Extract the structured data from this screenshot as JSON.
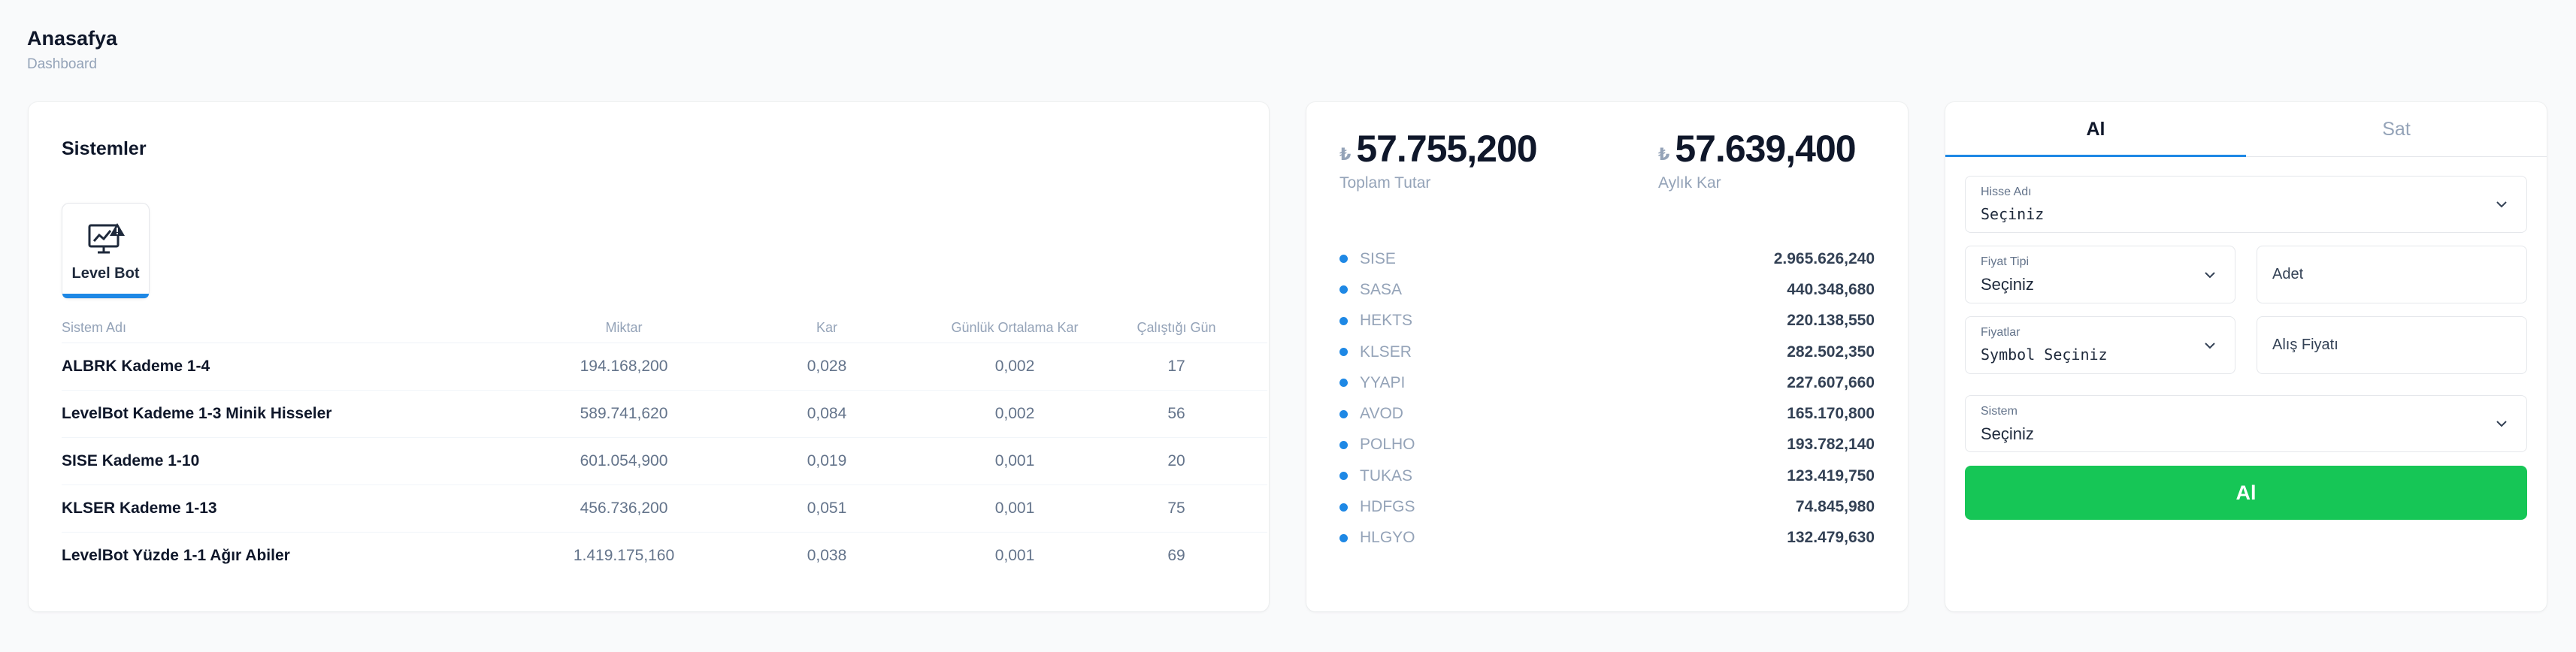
{
  "header": {
    "title": "Anasafya",
    "subtitle": "Dashboard"
  },
  "systems": {
    "title": "Sistemler",
    "bot": {
      "label": "Level Bot",
      "icon": "chart-monitor-icon"
    },
    "columns": [
      "Sistem Adı",
      "Miktar",
      "Kar",
      "Günlük Ortalama Kar",
      "Çalıştığı Gün"
    ],
    "rows": [
      {
        "name": "ALBRK Kademe 1-4",
        "miktar": "194.168,200",
        "kar": "0,028",
        "gok": "0,002",
        "gun": "17"
      },
      {
        "name": "LevelBot Kademe 1-3 Minik Hisseler",
        "miktar": "589.741,620",
        "kar": "0,084",
        "gok": "0,002",
        "gun": "56"
      },
      {
        "name": "SISE Kademe 1-10",
        "miktar": "601.054,900",
        "kar": "0,019",
        "gok": "0,001",
        "gun": "20"
      },
      {
        "name": "KLSER Kademe 1-13",
        "miktar": "456.736,200",
        "kar": "0,051",
        "gok": "0,001",
        "gun": "75"
      },
      {
        "name": "LevelBot Yüzde 1-1 Ağır Abiler",
        "miktar": "1.419.175,160",
        "kar": "0,038",
        "gok": "0,001",
        "gun": "69"
      }
    ]
  },
  "portfolio": {
    "currency_symbol": "₺",
    "total": {
      "amount": "57.755,200",
      "label": "Toplam Tutar"
    },
    "monthly": {
      "amount": "57.639,400",
      "label": "Aylık Kar"
    },
    "dot_color": "#1e88e5",
    "stocks": [
      {
        "symbol": "SISE",
        "value": "2.965.626,240"
      },
      {
        "symbol": "SASA",
        "value": "440.348,680"
      },
      {
        "symbol": "HEKTS",
        "value": "220.138,550"
      },
      {
        "symbol": "KLSER",
        "value": "282.502,350"
      },
      {
        "symbol": "YYAPI",
        "value": "227.607,660"
      },
      {
        "symbol": "AVOD",
        "value": "165.170,800"
      },
      {
        "symbol": "POLHO",
        "value": "193.782,140"
      },
      {
        "symbol": "TUKAS",
        "value": "123.419,750"
      },
      {
        "symbol": "HDFGS",
        "value": "74.845,980"
      },
      {
        "symbol": "HLGYO",
        "value": "132.479,630"
      }
    ]
  },
  "trade": {
    "tabs": {
      "buy": "Al",
      "sell": "Sat"
    },
    "active_tab": "Al",
    "hisse": {
      "label": "Hisse Adı",
      "value": "Seçiniz"
    },
    "fiyat_tipi": {
      "label": "Fiyat Tipi",
      "value": "Seçiniz"
    },
    "adet": {
      "placeholder": "Adet"
    },
    "fiyatlar": {
      "label": "Fiyatlar",
      "value": "Symbol Seçiniz"
    },
    "alis": {
      "placeholder": "Alış Fiyatı"
    },
    "sistem": {
      "label": "Sistem",
      "value": "Seçiniz"
    },
    "submit_label": "Al",
    "accent_color": "#1e88e5",
    "button_color": "#16c656"
  }
}
